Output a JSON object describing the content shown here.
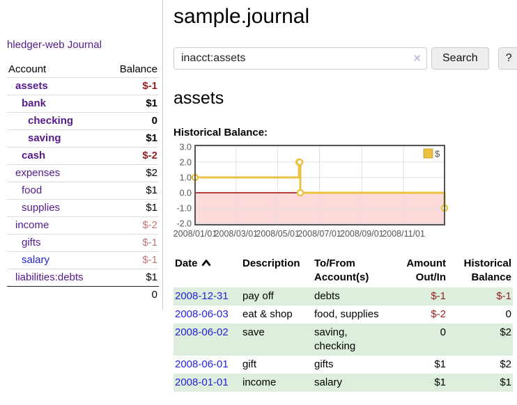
{
  "app": {
    "title": "hledger-web"
  },
  "nav": {
    "journal": "Journal"
  },
  "sidebar": {
    "columns": {
      "account": "Account",
      "balance": "Balance"
    },
    "accounts": [
      {
        "name": "assets",
        "depth": 1,
        "bold": true,
        "link_color": "purple",
        "balance": "$-1",
        "balance_style": "neg-strong"
      },
      {
        "name": "bank",
        "depth": 2,
        "bold": true,
        "link_color": "purple",
        "balance": "$1",
        "balance_style": "pos"
      },
      {
        "name": "checking",
        "depth": 3,
        "bold": true,
        "link_color": "purple",
        "balance": "0",
        "balance_style": "pos"
      },
      {
        "name": "saving",
        "depth": 3,
        "bold": true,
        "link_color": "purple",
        "balance": "$1",
        "balance_style": "pos"
      },
      {
        "name": "cash",
        "depth": 2,
        "bold": true,
        "link_color": "purple",
        "balance": "$-2",
        "balance_style": "neg-strong"
      },
      {
        "name": "expenses",
        "depth": 1,
        "bold": false,
        "link_color": "purple",
        "balance": "$2",
        "balance_style": "pos"
      },
      {
        "name": "food",
        "depth": 2,
        "bold": false,
        "link_color": "purple",
        "balance": "$1",
        "balance_style": "pos"
      },
      {
        "name": "supplies",
        "depth": 2,
        "bold": false,
        "link_color": "purple",
        "balance": "$1",
        "balance_style": "pos"
      },
      {
        "name": "income",
        "depth": 1,
        "bold": false,
        "link_color": "purple",
        "balance": "$-2",
        "balance_style": "neg-faint"
      },
      {
        "name": "gifts",
        "depth": 2,
        "bold": false,
        "link_color": "purple",
        "balance": "$-1",
        "balance_style": "neg-faint"
      },
      {
        "name": "salary",
        "depth": 2,
        "bold": false,
        "link_color": "blue",
        "balance": "$-1",
        "balance_style": "neg-faint"
      },
      {
        "name": "liabilities:debts",
        "depth": 1,
        "bold": false,
        "link_color": "purple",
        "balance": "$1",
        "balance_style": "pos"
      }
    ],
    "total": "0"
  },
  "header": {
    "title": "sample.journal"
  },
  "search": {
    "value": "inacct:assets",
    "clear_icon": "×",
    "button": "Search",
    "help_button": "?"
  },
  "account_page": {
    "heading": "assets",
    "chart_label": "Historical Balance:"
  },
  "chart_data": {
    "type": "line",
    "title": "Historical Balance",
    "step": true,
    "series": [
      {
        "name": "$",
        "color": "#e9c240",
        "x": [
          "2008-01-01",
          "2008-06-01",
          "2008-06-02",
          "2008-06-03",
          "2008-12-31"
        ],
        "values": [
          1,
          2,
          2,
          0,
          -1
        ]
      }
    ],
    "xlim": [
      "2008-01-01",
      "2008-12-31"
    ],
    "ylim": [
      -2.2,
      3.0
    ],
    "yticks": [
      "3.0",
      "2.0",
      "1.0",
      "0.0",
      "-1.0",
      "-2.0"
    ],
    "ytick_values": [
      3,
      2,
      1,
      0,
      -1,
      -2
    ],
    "xticks": [
      "2008/01/01",
      "2008/03/01",
      "2008/05/01",
      "2008/07/01",
      "2008/09/01",
      "2008/11/01"
    ],
    "legend": "$",
    "legend_position": "top-right",
    "grid": true,
    "negative_region_color": "#fcdada",
    "zero_line_color": "#a00000",
    "border_color": "#545454",
    "grid_color": "#e0e0e0",
    "tick_color": "#545454"
  },
  "register": {
    "columns": [
      {
        "label": "Date",
        "align": "left",
        "sorted": "asc"
      },
      {
        "label": "Description",
        "align": "left"
      },
      {
        "label": "To/From\nAccount(s)",
        "align": "left"
      },
      {
        "label": "Amount\nOut/In",
        "align": "right"
      },
      {
        "label": "Historical\nBalance",
        "align": "right"
      }
    ],
    "rows": [
      {
        "date": "2008-12-31",
        "description": "pay off",
        "accounts": "debts",
        "amount": "$-1",
        "amount_neg": true,
        "balance": "$-1",
        "balance_neg": true,
        "stripe": "green"
      },
      {
        "date": "2008-06-03",
        "description": "eat & shop",
        "accounts": "food, supplies",
        "amount": "$-2",
        "amount_neg": true,
        "balance": "0",
        "balance_neg": false,
        "stripe": "white"
      },
      {
        "date": "2008-06-02",
        "description": "save",
        "accounts": "saving, checking",
        "amount": "0",
        "amount_neg": false,
        "balance": "$2",
        "balance_neg": false,
        "stripe": "green"
      },
      {
        "date": "2008-06-01",
        "description": "gift",
        "accounts": "gifts",
        "amount": "$1",
        "amount_neg": false,
        "balance": "$2",
        "balance_neg": false,
        "stripe": "white"
      },
      {
        "date": "2008-01-01",
        "description": "income",
        "accounts": "salary",
        "amount": "$1",
        "amount_neg": false,
        "balance": "$1",
        "balance_neg": false,
        "stripe": "green"
      }
    ]
  }
}
